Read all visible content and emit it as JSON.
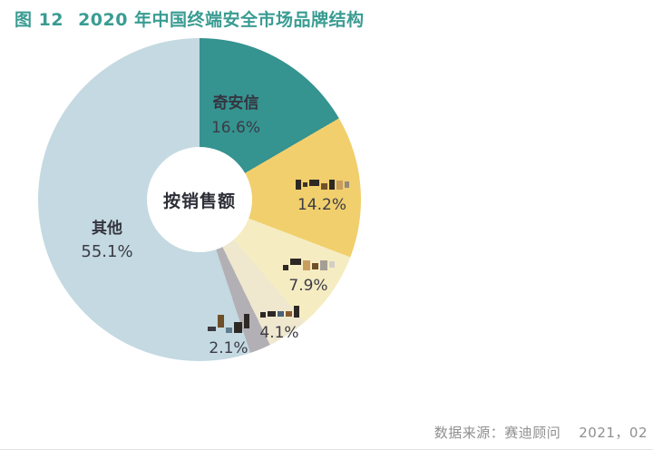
{
  "figure": {
    "label": "图 12",
    "title": "2020 年中国终端安全市场品牌结构"
  },
  "source": {
    "prefix": "数据来源：赛迪顾问",
    "date": "2021，02"
  },
  "chart_data": {
    "type": "pie",
    "variant": "donut",
    "title": "2020 年中国终端安全市场品牌结构",
    "center_label": "按销售额",
    "unit": "%",
    "start_angle_deg": 0,
    "direction": "clockwise",
    "legend_position": "none",
    "segments": [
      {
        "name": "奇安信",
        "value": 16.6,
        "display": "16.6%",
        "color": "#359390",
        "name_censored": false
      },
      {
        "name": "",
        "value": 14.2,
        "display": "14.2%",
        "color": "#f1cf6d",
        "name_censored": true,
        "censor_mosaic": [
          [
            "#2d2824",
            6,
            11,
            0
          ],
          [
            "#3b332a",
            5,
            5,
            3
          ],
          [
            "#2d2824",
            11,
            7,
            4
          ],
          [
            "#70522a",
            7,
            7,
            0
          ],
          [
            "#2d2824",
            6,
            11,
            0
          ],
          [
            "#c89e5e",
            7,
            10,
            0
          ],
          [
            "#938a7a",
            5,
            7,
            2
          ]
        ]
      },
      {
        "name": "",
        "value": 7.9,
        "display": "7.9%",
        "color": "#f6ecc2",
        "name_censored": true,
        "censor_mosaic": [
          [
            "#2d2824",
            6,
            6,
            0
          ],
          [
            "#2d2824",
            12,
            7,
            6
          ],
          [
            "#c89e5e",
            8,
            11,
            0
          ],
          [
            "#6f4f28",
            7,
            7,
            1
          ],
          [
            "#a39e96",
            8,
            11,
            0
          ],
          [
            "#d3cfc7",
            6,
            7,
            3
          ]
        ]
      },
      {
        "name": "",
        "value": 4.1,
        "display": "4.1%",
        "color": "#efe8cf",
        "name_censored": true,
        "censor_mosaic": [
          [
            "#2d2824",
            6,
            6,
            0
          ],
          [
            "#2d2824",
            9,
            6,
            1
          ],
          [
            "#4a6178",
            7,
            6,
            1
          ],
          [
            "#8a5a2e",
            7,
            6,
            1
          ],
          [
            "#2d2824",
            6,
            13,
            0
          ]
        ]
      },
      {
        "name": "",
        "value": 2.1,
        "display": "2.1%",
        "color": "#b3b0b5",
        "name_censored": true,
        "censor_mosaic": [
          [
            "#3a3a40",
            9,
            5,
            2
          ],
          [
            "#6f4f28",
            7,
            14,
            6
          ],
          [
            "#5d7b8c",
            7,
            6,
            0
          ],
          [
            "#2d2824",
            9,
            12,
            0
          ],
          [
            "#2d2824",
            6,
            16,
            5
          ]
        ]
      },
      {
        "name": "其他",
        "value": 55.1,
        "display": "55.1%",
        "color": "#c4d9e1",
        "name_censored": false
      }
    ]
  },
  "colors": {
    "title_text": "#3a9c92",
    "label_text": "#3b3b45",
    "source_text": "#8f8f8f",
    "background": "#ffffff"
  }
}
